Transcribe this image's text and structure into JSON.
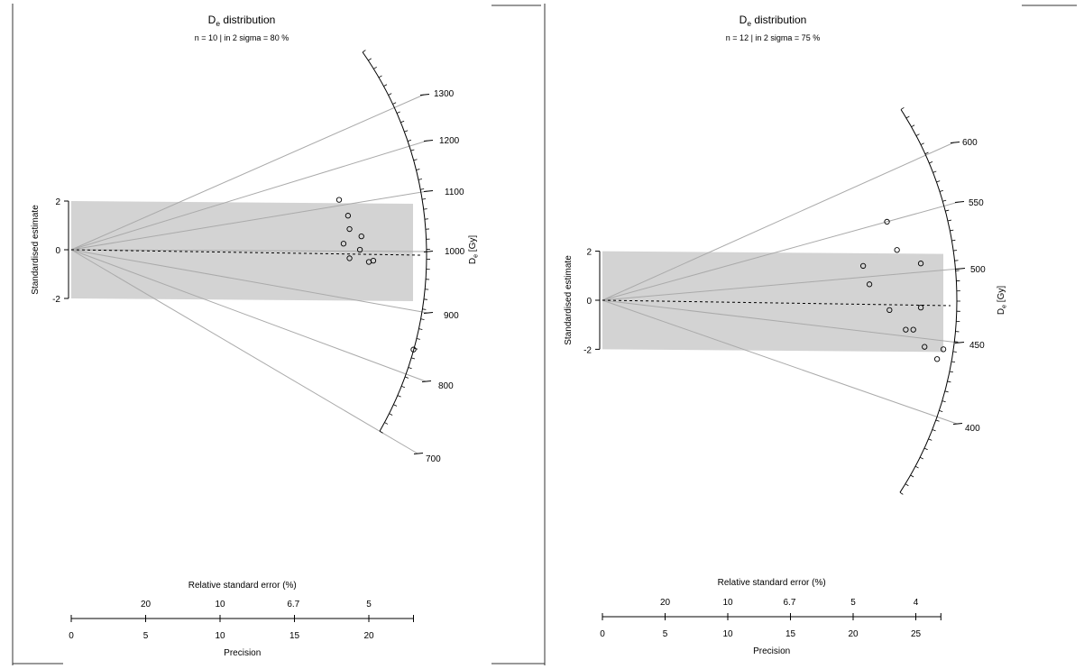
{
  "chart_data": [
    {
      "type": "scatter",
      "title": "De distribution",
      "subtitle": "n = 10 | in 2 sigma = 80 %",
      "ylabel": "Standardised estimate",
      "zlabel": "De [Gy]",
      "xlabel": "Precision",
      "x2label": "Relative standard error (%)",
      "xlim": [
        0,
        23
      ],
      "x_ticks": [
        "0",
        "5",
        "10",
        "15",
        "20"
      ],
      "x2_ticks": [
        "20",
        "10",
        "6.7",
        "5"
      ],
      "y_ticks": [
        "-2",
        "0",
        "2"
      ],
      "z_ticks": [
        "700",
        "800",
        "900",
        "1000",
        "1100",
        "1200",
        "1300"
      ],
      "z_central": 985,
      "band": [
        -2,
        2
      ],
      "points": [
        {
          "x": 18.0,
          "y": 2.05
        },
        {
          "x": 18.6,
          "y": 1.4
        },
        {
          "x": 18.7,
          "y": 0.85
        },
        {
          "x": 19.5,
          "y": 0.55
        },
        {
          "x": 18.3,
          "y": 0.25
        },
        {
          "x": 19.4,
          "y": 0.0
        },
        {
          "x": 18.7,
          "y": -0.35
        },
        {
          "x": 20.0,
          "y": -0.5
        },
        {
          "x": 20.3,
          "y": -0.45
        },
        {
          "x": 23.0,
          "y": -4.1
        }
      ]
    },
    {
      "type": "scatter",
      "title": "De distribution",
      "subtitle": "n = 12 | in 2 sigma = 75 %",
      "ylabel": "Standardised estimate",
      "zlabel": "De [Gy]",
      "xlabel": "Precision",
      "x2label": "Relative standard error (%)",
      "xlim": [
        0,
        27
      ],
      "x_ticks": [
        "0",
        "5",
        "10",
        "15",
        "20",
        "25"
      ],
      "x2_ticks": [
        "20",
        "10",
        "6.7",
        "5",
        "4"
      ],
      "y_ticks": [
        "-2",
        "0",
        "2"
      ],
      "z_ticks": [
        "400",
        "450",
        "500",
        "550",
        "600"
      ],
      "z_central": 475,
      "band": [
        -2,
        2
      ],
      "points": [
        {
          "x": 22.7,
          "y": 3.2
        },
        {
          "x": 23.5,
          "y": 2.05
        },
        {
          "x": 20.8,
          "y": 1.4
        },
        {
          "x": 25.4,
          "y": 1.5
        },
        {
          "x": 21.3,
          "y": 0.65
        },
        {
          "x": 22.9,
          "y": -0.4
        },
        {
          "x": 25.4,
          "y": -0.3
        },
        {
          "x": 24.2,
          "y": -1.2
        },
        {
          "x": 24.8,
          "y": -1.2
        },
        {
          "x": 25.7,
          "y": -1.9
        },
        {
          "x": 26.7,
          "y": -2.4
        },
        {
          "x": 27.2,
          "y": -2.0
        }
      ]
    }
  ]
}
